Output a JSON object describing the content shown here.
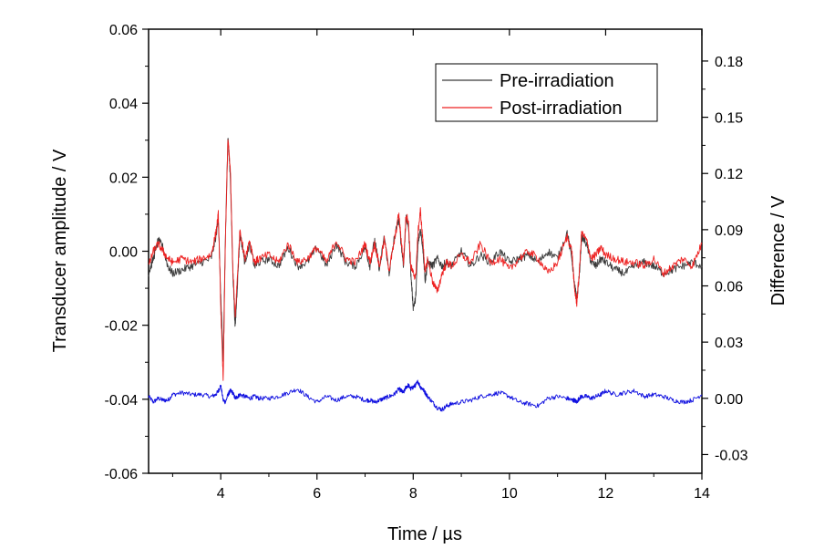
{
  "chart_data": {
    "type": "line",
    "title": "",
    "xlabel": "Time / µs",
    "ylabel_left": "Transducer amplitude / V",
    "ylabel_right": "Difference / V",
    "xlim": [
      2.5,
      14
    ],
    "ylim_left": [
      -0.06,
      0.06
    ],
    "ylim_right": [
      -0.04,
      0.197
    ],
    "x_ticks": [
      "4",
      "6",
      "8",
      "10",
      "12",
      "14"
    ],
    "y_left_ticks": [
      "0.06",
      "0.04",
      "0.02",
      "0.00",
      "-0.02",
      "-0.04",
      "-0.06"
    ],
    "y_right_ticks": [
      "0.18",
      "0.15",
      "0.12",
      "0.09",
      "0.06",
      "0.03",
      "0.00",
      "-0.03"
    ],
    "legend_position": "top-right",
    "grid": false,
    "series": [
      {
        "name": "Pre-irradiation",
        "axis": "left",
        "color": "#3a3a3a",
        "x": [
          2.5,
          2.6,
          2.7,
          2.8,
          2.9,
          3.0,
          3.2,
          3.4,
          3.6,
          3.8,
          3.9,
          3.95,
          4.0,
          4.05,
          4.1,
          4.15,
          4.2,
          4.25,
          4.3,
          4.35,
          4.4,
          4.5,
          4.6,
          4.7,
          4.8,
          5.0,
          5.2,
          5.4,
          5.6,
          5.8,
          6.0,
          6.2,
          6.4,
          6.6,
          6.8,
          7.0,
          7.1,
          7.2,
          7.3,
          7.4,
          7.5,
          7.6,
          7.7,
          7.75,
          7.8,
          7.85,
          7.9,
          7.95,
          8.0,
          8.05,
          8.1,
          8.15,
          8.2,
          8.25,
          8.3,
          8.4,
          8.5,
          8.6,
          8.7,
          8.8,
          9.0,
          9.2,
          9.4,
          9.6,
          9.8,
          10.0,
          10.2,
          10.4,
          10.6,
          10.8,
          11.0,
          11.2,
          11.3,
          11.35,
          11.4,
          11.45,
          11.5,
          11.6,
          11.7,
          11.8,
          11.9,
          12.0,
          12.2,
          12.4,
          12.6,
          12.8,
          13.0,
          13.2,
          13.4,
          13.6,
          13.8,
          14.0
        ],
        "y": [
          -0.006,
          -0.002,
          0.003,
          0.001,
          -0.004,
          -0.006,
          -0.005,
          -0.004,
          -0.003,
          -0.002,
          0.004,
          0.009,
          -0.012,
          -0.03,
          0.006,
          0.031,
          0.02,
          -0.005,
          -0.021,
          -0.008,
          0.005,
          -0.003,
          0.002,
          -0.004,
          -0.003,
          -0.002,
          -0.004,
          0.001,
          -0.004,
          -0.003,
          0.001,
          -0.004,
          0.002,
          -0.003,
          -0.004,
          0.001,
          -0.004,
          0.003,
          -0.005,
          0.004,
          -0.006,
          0.003,
          0.009,
          0.002,
          -0.004,
          0.009,
          0.007,
          -0.006,
          -0.015,
          -0.013,
          0.002,
          0.006,
          0.001,
          -0.008,
          -0.003,
          -0.004,
          -0.002,
          -0.004,
          -0.003,
          -0.004,
          0.0,
          -0.004,
          -0.001,
          -0.003,
          0.0,
          -0.003,
          -0.002,
          -0.001,
          -0.003,
          0.0,
          -0.002,
          0.005,
          -0.002,
          -0.009,
          -0.013,
          -0.007,
          0.004,
          0.002,
          -0.003,
          -0.004,
          -0.002,
          -0.003,
          -0.005,
          -0.006,
          -0.004,
          -0.003,
          -0.004,
          -0.006,
          -0.005,
          -0.004,
          -0.003,
          -0.004
        ]
      },
      {
        "name": "Post-irradiation",
        "axis": "left",
        "color": "#ee2222",
        "x": [
          2.5,
          2.6,
          2.7,
          2.8,
          2.9,
          3.0,
          3.2,
          3.4,
          3.6,
          3.8,
          3.9,
          3.95,
          4.0,
          4.05,
          4.1,
          4.15,
          4.2,
          4.25,
          4.3,
          4.35,
          4.4,
          4.5,
          4.6,
          4.7,
          4.8,
          5.0,
          5.2,
          5.4,
          5.6,
          5.8,
          6.0,
          6.2,
          6.4,
          6.6,
          6.8,
          7.0,
          7.1,
          7.2,
          7.3,
          7.4,
          7.5,
          7.6,
          7.7,
          7.75,
          7.8,
          7.85,
          7.9,
          7.95,
          8.0,
          8.05,
          8.1,
          8.15,
          8.2,
          8.25,
          8.3,
          8.4,
          8.5,
          8.6,
          8.7,
          8.8,
          9.0,
          9.2,
          9.4,
          9.6,
          9.8,
          10.0,
          10.2,
          10.4,
          10.6,
          10.8,
          11.0,
          11.2,
          11.3,
          11.35,
          11.4,
          11.45,
          11.5,
          11.6,
          11.7,
          11.8,
          11.9,
          12.0,
          12.2,
          12.4,
          12.6,
          12.8,
          13.0,
          13.2,
          13.4,
          13.6,
          13.8,
          14.0
        ],
        "y": [
          -0.004,
          0.0,
          0.002,
          0.0,
          -0.002,
          -0.003,
          -0.002,
          -0.003,
          -0.002,
          -0.001,
          0.005,
          0.01,
          -0.015,
          -0.035,
          0.005,
          0.03,
          0.022,
          -0.004,
          -0.018,
          -0.006,
          0.006,
          -0.002,
          0.003,
          -0.003,
          -0.002,
          -0.001,
          -0.003,
          0.002,
          -0.003,
          -0.002,
          0.001,
          -0.003,
          0.003,
          -0.002,
          -0.003,
          0.002,
          -0.003,
          0.002,
          -0.004,
          0.003,
          -0.005,
          0.002,
          0.01,
          0.003,
          -0.003,
          0.01,
          0.008,
          -0.004,
          -0.006,
          -0.007,
          0.005,
          0.011,
          0.003,
          -0.006,
          -0.002,
          -0.008,
          -0.011,
          -0.006,
          -0.003,
          -0.004,
          -0.001,
          -0.003,
          0.002,
          -0.003,
          -0.002,
          -0.005,
          -0.002,
          0.0,
          -0.002,
          -0.006,
          -0.003,
          0.004,
          0.0,
          -0.01,
          -0.014,
          -0.006,
          0.005,
          0.003,
          -0.002,
          -0.001,
          0.001,
          -0.001,
          -0.002,
          -0.003,
          -0.003,
          -0.004,
          -0.002,
          -0.006,
          -0.004,
          -0.002,
          -0.004,
          0.002
        ]
      },
      {
        "name": "",
        "axis": "right",
        "color": "#1010e0",
        "x": [
          2.5,
          2.6,
          2.7,
          2.8,
          2.9,
          3.0,
          3.2,
          3.4,
          3.6,
          3.8,
          3.9,
          3.95,
          4.0,
          4.05,
          4.1,
          4.15,
          4.2,
          4.25,
          4.3,
          4.35,
          4.4,
          4.5,
          4.6,
          4.7,
          4.8,
          5.0,
          5.2,
          5.4,
          5.6,
          5.8,
          6.0,
          6.2,
          6.4,
          6.6,
          6.8,
          7.0,
          7.1,
          7.2,
          7.3,
          7.4,
          7.5,
          7.6,
          7.7,
          7.75,
          7.8,
          7.85,
          7.9,
          7.95,
          8.0,
          8.05,
          8.1,
          8.15,
          8.2,
          8.25,
          8.3,
          8.4,
          8.5,
          8.6,
          8.7,
          8.8,
          9.0,
          9.2,
          9.4,
          9.6,
          9.8,
          10.0,
          10.2,
          10.4,
          10.6,
          10.8,
          11.0,
          11.2,
          11.3,
          11.35,
          11.4,
          11.45,
          11.5,
          11.6,
          11.7,
          11.8,
          11.9,
          12.0,
          12.2,
          12.4,
          12.6,
          12.8,
          13.0,
          13.2,
          13.4,
          13.6,
          13.8,
          14.0
        ],
        "y": [
          0.001,
          -0.002,
          0.0,
          -0.001,
          -0.001,
          0.002,
          0.003,
          0.002,
          0.002,
          0.001,
          0.002,
          0.004,
          0.007,
          -0.001,
          -0.002,
          0.002,
          0.004,
          0.003,
          0.0,
          0.001,
          0.002,
          0.001,
          0.0,
          0.001,
          0.0,
          0.0,
          0.001,
          0.003,
          0.005,
          0.001,
          -0.002,
          0.001,
          -0.001,
          0.001,
          0.001,
          -0.001,
          -0.001,
          -0.002,
          -0.001,
          0.0,
          0.001,
          0.002,
          0.005,
          0.004,
          0.003,
          0.006,
          0.007,
          0.005,
          0.006,
          0.007,
          0.009,
          0.006,
          0.005,
          0.003,
          0.001,
          -0.002,
          -0.005,
          -0.006,
          -0.004,
          -0.003,
          -0.002,
          -0.001,
          0.001,
          0.002,
          0.003,
          0.001,
          -0.002,
          -0.003,
          -0.004,
          0.0,
          0.001,
          0.0,
          -0.001,
          -0.001,
          -0.002,
          0.0,
          0.001,
          0.001,
          0.0,
          0.001,
          0.002,
          0.004,
          0.002,
          0.003,
          0.004,
          0.001,
          0.002,
          0.001,
          -0.001,
          -0.002,
          -0.001,
          0.002
        ]
      }
    ]
  }
}
